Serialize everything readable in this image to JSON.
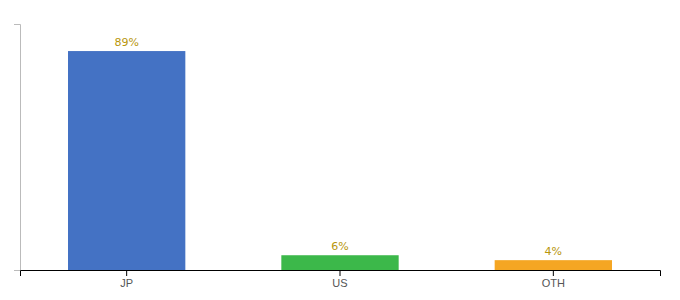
{
  "chart_data": {
    "type": "bar",
    "categories": [
      "JP",
      "US",
      "OTH"
    ],
    "values": [
      89,
      6,
      4
    ],
    "value_labels": [
      "89%",
      "6%",
      "4%"
    ],
    "colors": [
      "#4472c4",
      "#3cb84a",
      "#f5a623"
    ],
    "ylim": [
      0,
      100
    ],
    "grid": false,
    "data_labels": true,
    "tick_labels": "x"
  }
}
